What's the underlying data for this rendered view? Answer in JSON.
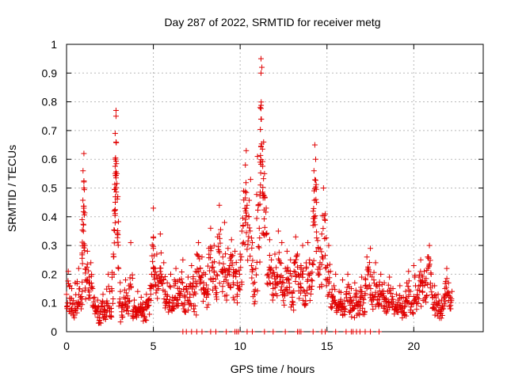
{
  "chart_data": {
    "type": "scatter",
    "title": "Day 287 of 2022, SRMTID for receiver metg",
    "xlabel": "GPS time / hours",
    "ylabel": "SRMTID / TECUs",
    "xlim": [
      0,
      24
    ],
    "ylim": [
      0,
      1
    ],
    "x_ticks": [
      0,
      5,
      10,
      15,
      20
    ],
    "x_tick_labels": [
      "0",
      "5",
      "10",
      "15",
      "20"
    ],
    "y_ticks": [
      0,
      0.1,
      0.2,
      0.3,
      0.4,
      0.5,
      0.6,
      0.7,
      0.8,
      0.9,
      1
    ],
    "y_tick_labels": [
      "0",
      "0.1",
      "0.2",
      "0.3",
      "0.4",
      "0.5",
      "0.6",
      "0.7",
      "0.8",
      "0.9",
      "1"
    ],
    "grid": true,
    "marker": "plus",
    "color": "#e00000",
    "series": [
      {
        "name": "SRMTID",
        "points": [
          [
            0.0,
            0.13
          ],
          [
            0.1,
            0.21
          ],
          [
            0.2,
            0.1
          ],
          [
            0.3,
            0.15
          ],
          [
            0.4,
            0.06
          ],
          [
            0.5,
            0.17
          ],
          [
            0.6,
            0.08
          ],
          [
            0.7,
            0.22
          ],
          [
            0.8,
            0.12
          ],
          [
            0.9,
            0.14
          ],
          [
            0.9,
            0.39
          ],
          [
            0.95,
            0.56
          ],
          [
            1.0,
            0.5
          ],
          [
            1.0,
            0.62
          ],
          [
            1.05,
            0.3
          ],
          [
            1.1,
            0.18
          ],
          [
            1.2,
            0.28
          ],
          [
            1.3,
            0.19
          ],
          [
            1.4,
            0.24
          ],
          [
            1.5,
            0.15
          ],
          [
            1.6,
            0.12
          ],
          [
            1.7,
            0.07
          ],
          [
            1.8,
            0.11
          ],
          [
            1.9,
            0.04
          ],
          [
            2.0,
            0.09
          ],
          [
            2.1,
            0.13
          ],
          [
            2.2,
            0.06
          ],
          [
            2.3,
            0.1
          ],
          [
            2.4,
            0.2
          ],
          [
            2.5,
            0.08
          ],
          [
            2.6,
            0.15
          ],
          [
            2.7,
            0.27
          ],
          [
            2.75,
            0.42
          ],
          [
            2.8,
            0.6
          ],
          [
            2.8,
            0.69
          ],
          [
            2.85,
            0.75
          ],
          [
            2.85,
            0.77
          ],
          [
            2.9,
            0.55
          ],
          [
            2.95,
            0.47
          ],
          [
            3.0,
            0.22
          ],
          [
            3.1,
            0.14
          ],
          [
            3.2,
            0.05
          ],
          [
            3.3,
            0.12
          ],
          [
            3.4,
            0.18
          ],
          [
            3.5,
            0.09
          ],
          [
            3.6,
            0.16
          ],
          [
            3.7,
            0.31
          ],
          [
            3.8,
            0.07
          ],
          [
            3.9,
            0.11
          ],
          [
            4.0,
            0.06
          ],
          [
            4.1,
            0.14
          ],
          [
            4.2,
            0.08
          ],
          [
            4.3,
            0.12
          ],
          [
            4.4,
            0.1
          ],
          [
            4.5,
            0.05
          ],
          [
            4.6,
            0.13
          ],
          [
            4.7,
            0.09
          ],
          [
            4.8,
            0.15
          ],
          [
            4.9,
            0.2
          ],
          [
            5.0,
            0.43
          ],
          [
            5.0,
            0.33
          ],
          [
            5.1,
            0.22
          ],
          [
            5.2,
            0.27
          ],
          [
            5.3,
            0.15
          ],
          [
            5.4,
            0.34
          ],
          [
            5.5,
            0.19
          ],
          [
            5.6,
            0.24
          ],
          [
            5.7,
            0.13
          ],
          [
            5.8,
            0.17
          ],
          [
            5.9,
            0.09
          ],
          [
            6.0,
            0.2
          ],
          [
            6.1,
            0.12
          ],
          [
            6.2,
            0.16
          ],
          [
            6.3,
            0.22
          ],
          [
            6.4,
            0.11
          ],
          [
            6.5,
            0.18
          ],
          [
            6.6,
            0.14
          ],
          [
            6.7,
            0.25
          ],
          [
            6.8,
            0.1
          ],
          [
            6.9,
            0.15
          ],
          [
            7.0,
            0.19
          ],
          [
            7.1,
            0.12
          ],
          [
            7.2,
            0.23
          ],
          [
            7.3,
            0.17
          ],
          [
            7.4,
            0.09
          ],
          [
            7.5,
            0.27
          ],
          [
            7.6,
            0.31
          ],
          [
            7.7,
            0.22
          ],
          [
            7.8,
            0.26
          ],
          [
            7.9,
            0.17
          ],
          [
            8.0,
            0.2
          ],
          [
            8.1,
            0.14
          ],
          [
            8.2,
            0.29
          ],
          [
            8.3,
            0.36
          ],
          [
            8.4,
            0.24
          ],
          [
            8.5,
            0.3
          ],
          [
            8.6,
            0.13
          ],
          [
            8.7,
            0.33
          ],
          [
            8.8,
            0.44
          ],
          [
            8.9,
            0.21
          ],
          [
            9.0,
            0.26
          ],
          [
            9.1,
            0.38
          ],
          [
            9.2,
            0.18
          ],
          [
            9.3,
            0.29
          ],
          [
            9.4,
            0.23
          ],
          [
            9.5,
            0.32
          ],
          [
            9.6,
            0.17
          ],
          [
            9.7,
            0.28
          ],
          [
            9.8,
            0.21
          ],
          [
            9.9,
            0.15
          ],
          [
            10.0,
            0.27
          ],
          [
            10.1,
            0.35
          ],
          [
            10.2,
            0.49
          ],
          [
            10.3,
            0.58
          ],
          [
            10.35,
            0.63
          ],
          [
            10.4,
            0.44
          ],
          [
            10.5,
            0.4
          ],
          [
            10.6,
            0.53
          ],
          [
            10.7,
            0.31
          ],
          [
            10.8,
            0.14
          ],
          [
            10.9,
            0.22
          ],
          [
            11.0,
            0.61
          ],
          [
            11.1,
            0.36
          ],
          [
            11.15,
            0.78
          ],
          [
            11.2,
            0.9
          ],
          [
            11.2,
            0.95
          ],
          [
            11.25,
            0.92
          ],
          [
            11.3,
            0.48
          ],
          [
            11.35,
            0.66
          ],
          [
            11.4,
            0.55
          ],
          [
            11.5,
            0.43
          ],
          [
            11.6,
            0.2
          ],
          [
            11.7,
            0.32
          ],
          [
            11.8,
            0.25
          ],
          [
            11.9,
            0.15
          ],
          [
            12.0,
            0.27
          ],
          [
            12.1,
            0.19
          ],
          [
            12.2,
            0.35
          ],
          [
            12.3,
            0.24
          ],
          [
            12.4,
            0.31
          ],
          [
            12.5,
            0.13
          ],
          [
            12.6,
            0.22
          ],
          [
            12.7,
            0.28
          ],
          [
            12.8,
            0.18
          ],
          [
            12.9,
            0.25
          ],
          [
            13.0,
            0.12
          ],
          [
            13.1,
            0.21
          ],
          [
            13.2,
            0.33
          ],
          [
            13.3,
            0.27
          ],
          [
            13.4,
            0.19
          ],
          [
            13.5,
            0.23
          ],
          [
            13.6,
            0.3
          ],
          [
            13.7,
            0.14
          ],
          [
            13.8,
            0.22
          ],
          [
            13.9,
            0.31
          ],
          [
            14.0,
            0.25
          ],
          [
            14.1,
            0.18
          ],
          [
            14.2,
            0.37
          ],
          [
            14.25,
            0.56
          ],
          [
            14.3,
            0.65
          ],
          [
            14.35,
            0.6
          ],
          [
            14.4,
            0.45
          ],
          [
            14.5,
            0.29
          ],
          [
            14.6,
            0.24
          ],
          [
            14.7,
            0.34
          ],
          [
            14.8,
            0.5
          ],
          [
            14.9,
            0.41
          ],
          [
            15.0,
            0.18
          ],
          [
            15.1,
            0.3
          ],
          [
            15.2,
            0.21
          ],
          [
            15.3,
            0.12
          ],
          [
            15.4,
            0.16
          ],
          [
            15.5,
            0.2
          ],
          [
            15.6,
            0.09
          ],
          [
            15.7,
            0.14
          ],
          [
            15.8,
            0.1
          ],
          [
            15.9,
            0.18
          ],
          [
            16.0,
            0.07
          ],
          [
            16.1,
            0.13
          ],
          [
            16.2,
            0.2
          ],
          [
            16.3,
            0.11
          ],
          [
            16.4,
            0.15
          ],
          [
            16.5,
            0.08
          ],
          [
            16.6,
            0.17
          ],
          [
            16.7,
            0.12
          ],
          [
            16.8,
            0.09
          ],
          [
            16.9,
            0.14
          ],
          [
            17.0,
            0.19
          ],
          [
            17.1,
            0.1
          ],
          [
            17.2,
            0.16
          ],
          [
            17.3,
            0.26
          ],
          [
            17.4,
            0.21
          ],
          [
            17.5,
            0.29
          ],
          [
            17.6,
            0.13
          ],
          [
            17.7,
            0.18
          ],
          [
            17.8,
            0.24
          ],
          [
            17.9,
            0.11
          ],
          [
            18.0,
            0.16
          ],
          [
            18.1,
            0.2
          ],
          [
            18.2,
            0.12
          ],
          [
            18.3,
            0.17
          ],
          [
            18.4,
            0.09
          ],
          [
            18.5,
            0.14
          ],
          [
            18.6,
            0.19
          ],
          [
            18.7,
            0.1
          ],
          [
            18.8,
            0.15
          ],
          [
            18.9,
            0.08
          ],
          [
            19.0,
            0.13
          ],
          [
            19.1,
            0.11
          ],
          [
            19.2,
            0.16
          ],
          [
            19.3,
            0.07
          ],
          [
            19.4,
            0.12
          ],
          [
            19.5,
            0.09
          ],
          [
            19.6,
            0.17
          ],
          [
            19.7,
            0.21
          ],
          [
            19.8,
            0.14
          ],
          [
            19.9,
            0.1
          ],
          [
            20.0,
            0.23
          ],
          [
            20.1,
            0.16
          ],
          [
            20.2,
            0.12
          ],
          [
            20.3,
            0.19
          ],
          [
            20.4,
            0.25
          ],
          [
            20.5,
            0.14
          ],
          [
            20.6,
            0.21
          ],
          [
            20.7,
            0.17
          ],
          [
            20.8,
            0.26
          ],
          [
            20.9,
            0.3
          ],
          [
            21.0,
            0.2
          ],
          [
            21.1,
            0.12
          ],
          [
            21.2,
            0.16
          ],
          [
            21.3,
            0.09
          ],
          [
            21.4,
            0.13
          ],
          [
            21.5,
            0.07
          ],
          [
            21.6,
            0.11
          ],
          [
            21.7,
            0.08
          ],
          [
            21.8,
            0.15
          ],
          [
            21.9,
            0.22
          ],
          [
            22.0,
            0.17
          ],
          [
            22.1,
            0.12
          ],
          [
            22.2,
            0.14
          ]
        ]
      }
    ],
    "zero_points_x": [
      6.7,
      6.9,
      7.2,
      7.5,
      7.8,
      8.3,
      8.6,
      9.2,
      9.7,
      9.8,
      9.9,
      10.4,
      10.7,
      11.4,
      11.9,
      12.6,
      13.3,
      13.4,
      13.5,
      14.2,
      14.7,
      14.9,
      15.5,
      16.1,
      16.4,
      16.5,
      16.7,
      16.9,
      17.2,
      17.5,
      18.0
    ]
  }
}
